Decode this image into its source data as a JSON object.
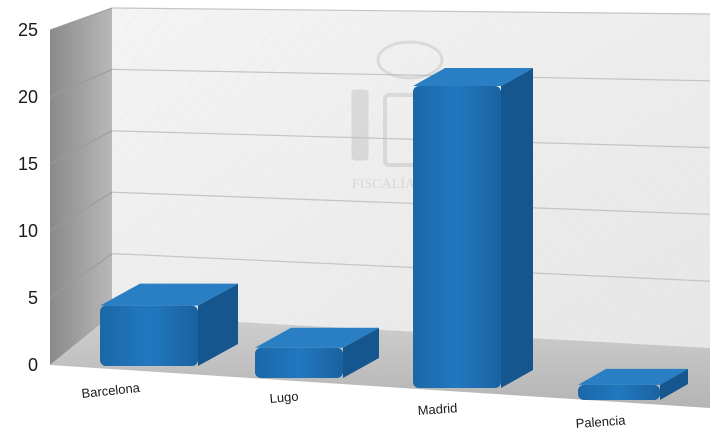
{
  "chart_data": {
    "type": "bar",
    "categories": [
      "Barcelona",
      "Lugo",
      "Madrid",
      "Palencia"
    ],
    "values": [
      4,
      2,
      20,
      1
    ],
    "yticks": [
      "0",
      "5",
      "10",
      "15",
      "20",
      "25"
    ],
    "ylim": [
      0,
      25
    ],
    "grid": true,
    "bar_color": "#1f6fb2",
    "bar_top_color": "#2a7fc4",
    "bar_side_color": "#15568e",
    "watermark": "FISCALÍA DEL ..."
  }
}
